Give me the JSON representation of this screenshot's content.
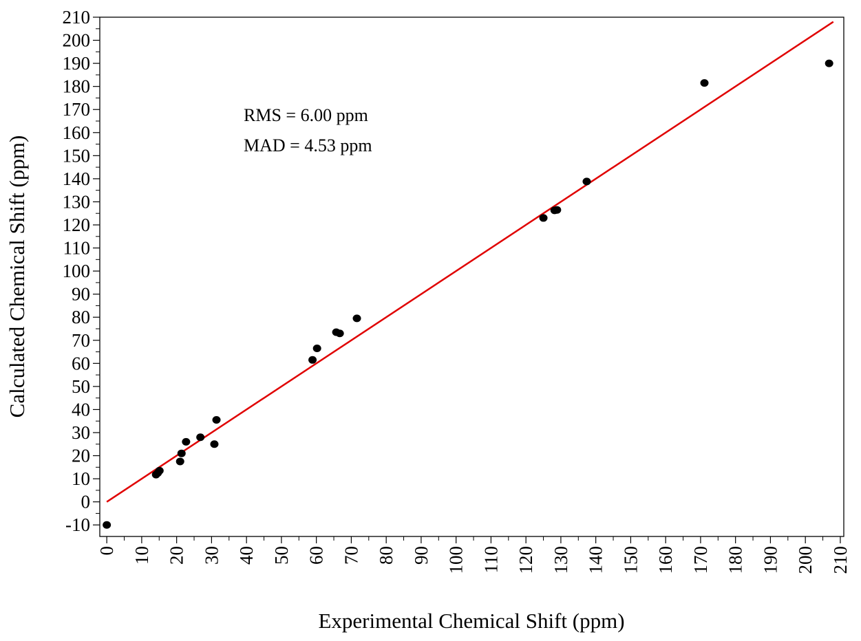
{
  "chart_data": {
    "type": "scatter",
    "xlabel": "Experimental Chemical Shift (ppm)",
    "ylabel": "Calculated Chemical Shift (ppm)",
    "xlim": [
      -2,
      211
    ],
    "ylim": [
      -15,
      210
    ],
    "x_ticks": [
      0,
      10,
      20,
      30,
      40,
      50,
      60,
      70,
      80,
      90,
      100,
      110,
      120,
      130,
      140,
      150,
      160,
      170,
      180,
      190,
      200,
      210
    ],
    "y_ticks": [
      -10,
      0,
      10,
      20,
      30,
      40,
      50,
      60,
      70,
      80,
      90,
      100,
      110,
      120,
      130,
      140,
      150,
      160,
      170,
      180,
      190,
      200,
      210
    ],
    "grid": false,
    "annotations": [
      "RMS = 6.00 ppm",
      "MAD = 4.53 ppm"
    ],
    "points": [
      {
        "x": 0.0,
        "y": -10.0
      },
      {
        "x": 14.1,
        "y": 11.8
      },
      {
        "x": 14.6,
        "y": 12.5
      },
      {
        "x": 15.1,
        "y": 13.5
      },
      {
        "x": 21.0,
        "y": 17.5
      },
      {
        "x": 21.4,
        "y": 21.0
      },
      {
        "x": 22.7,
        "y": 26.0
      },
      {
        "x": 26.8,
        "y": 28.0
      },
      {
        "x": 30.8,
        "y": 25.0
      },
      {
        "x": 31.4,
        "y": 35.5
      },
      {
        "x": 58.9,
        "y": 61.5
      },
      {
        "x": 60.2,
        "y": 66.5
      },
      {
        "x": 65.7,
        "y": 73.5
      },
      {
        "x": 66.7,
        "y": 73.0
      },
      {
        "x": 71.6,
        "y": 79.5
      },
      {
        "x": 125.0,
        "y": 123.0
      },
      {
        "x": 128.2,
        "y": 126.3
      },
      {
        "x": 128.9,
        "y": 126.5
      },
      {
        "x": 137.4,
        "y": 138.8
      },
      {
        "x": 171.1,
        "y": 181.5
      },
      {
        "x": 206.8,
        "y": 190.0
      }
    ],
    "fit_line": {
      "x": [
        0,
        208
      ],
      "y": [
        0,
        208
      ],
      "color": "#e00000"
    },
    "marker_color": "#000000"
  }
}
